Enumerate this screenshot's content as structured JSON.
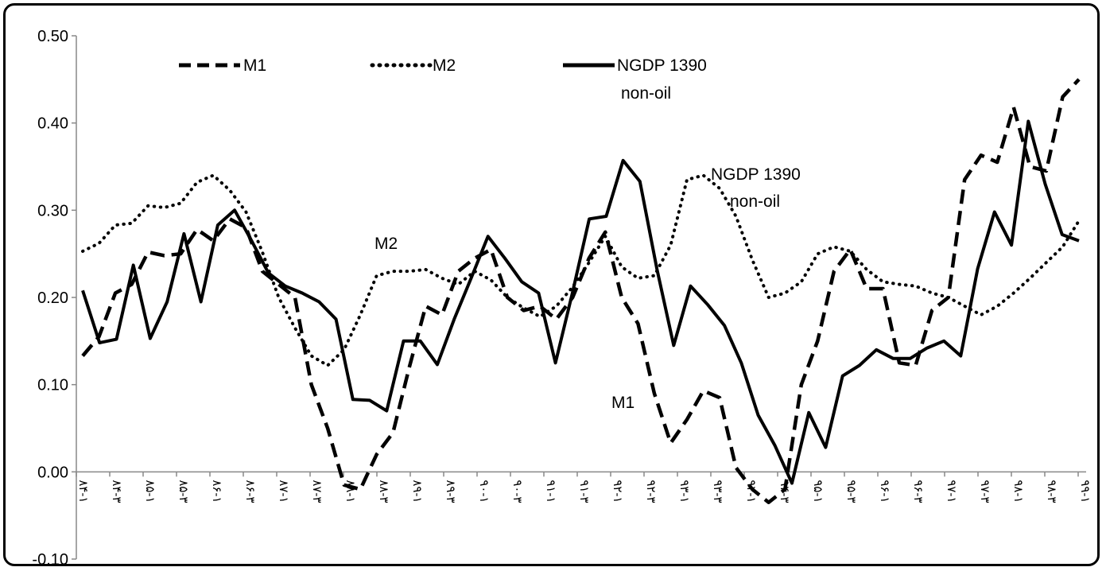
{
  "chart_data": {
    "type": "line",
    "title": "",
    "xlabel": "",
    "ylabel": "",
    "ylim": [
      -0.1,
      0.5
    ],
    "yticks": [
      "0.50",
      "0.40",
      "0.30",
      "0.20",
      "0.10",
      "0.00",
      "-0.10"
    ],
    "grid": false,
    "legend_position": "top",
    "x_tick_labels": [
      "۸۴-۱",
      "۸۴-۳",
      "۸۵-۱",
      "۸۵-۳",
      "۸۶-۱",
      "۸۶-۳",
      "۸۷-۱",
      "۸۷-۳",
      "۸۸-۱",
      "۸۸-۳",
      "۸۹-۱",
      "۸۹-۳",
      "۹۰-۱",
      "۹۰-۳",
      "۹۱-۱",
      "۹۱-۳",
      "۹۲-۱",
      "۹۲-۳",
      "۹۳-۱",
      "۹۳-۳",
      "۹۴-۱",
      "۹۴-۳",
      "۹۵-۱",
      "۹۵-۳",
      "۹۶-۱",
      "۹۶-۳",
      "۹۷-۱",
      "۹۷-۳",
      "۹۸-۱",
      "۹۸-۳",
      "۹۹-۱"
    ],
    "series": [
      {
        "name": "M1",
        "style": "dashed",
        "values": [
          0.133,
          0.155,
          0.205,
          0.215,
          0.252,
          0.248,
          0.25,
          0.278,
          0.265,
          0.29,
          0.28,
          0.23,
          0.215,
          0.2,
          0.1,
          0.05,
          -0.015,
          -0.02,
          0.02,
          0.045,
          0.12,
          0.19,
          0.18,
          0.23,
          0.245,
          0.255,
          0.2,
          0.185,
          0.19,
          0.175,
          0.2,
          0.245,
          0.275,
          0.2,
          0.17,
          0.09,
          0.033,
          0.06,
          0.093,
          0.085,
          0.005,
          -0.02,
          -0.035,
          -0.02,
          0.1,
          0.15,
          0.23,
          0.255,
          0.21,
          0.21,
          0.125,
          0.122,
          0.185,
          0.2,
          0.335,
          0.363,
          0.355,
          0.418,
          0.35,
          0.345,
          0.43,
          0.45
        ]
      },
      {
        "name": "M2",
        "style": "dotted",
        "values": [
          0.253,
          0.262,
          0.283,
          0.285,
          0.305,
          0.303,
          0.308,
          0.332,
          0.34,
          0.323,
          0.298,
          0.252,
          0.2,
          0.165,
          0.133,
          0.122,
          0.14,
          0.18,
          0.225,
          0.23,
          0.23,
          0.232,
          0.222,
          0.215,
          0.23,
          0.22,
          0.2,
          0.188,
          0.178,
          0.19,
          0.212,
          0.24,
          0.27,
          0.235,
          0.222,
          0.225,
          0.26,
          0.335,
          0.34,
          0.325,
          0.293,
          0.243,
          0.2,
          0.205,
          0.218,
          0.25,
          0.258,
          0.253,
          0.232,
          0.218,
          0.215,
          0.213,
          0.205,
          0.2,
          0.19,
          0.18,
          0.19,
          0.205,
          0.222,
          0.24,
          0.258,
          0.288
        ]
      },
      {
        "name": "NGDP 1390 non-oil",
        "style": "solid",
        "values": [
          0.208,
          0.148,
          0.152,
          0.237,
          0.153,
          0.195,
          0.273,
          0.195,
          0.283,
          0.3,
          0.265,
          0.228,
          0.213,
          0.205,
          0.195,
          0.175,
          0.083,
          0.082,
          0.07,
          0.15,
          0.15,
          0.123,
          0.175,
          0.222,
          0.27,
          0.245,
          0.218,
          0.205,
          0.125,
          0.205,
          0.29,
          0.293,
          0.357,
          0.333,
          0.233,
          0.145,
          0.213,
          0.192,
          0.168,
          0.125,
          0.065,
          0.03,
          -0.013,
          0.068,
          0.028,
          0.11,
          0.122,
          0.14,
          0.13,
          0.13,
          0.142,
          0.15,
          0.133,
          0.233,
          0.298,
          0.26,
          0.402,
          0.33,
          0.272,
          0.265
        ]
      }
    ],
    "legend": [
      {
        "label": "M1",
        "style": "dashed"
      },
      {
        "label": "M2",
        "style": "dotted"
      },
      {
        "label_line1": "NGDP 1390",
        "label_line2": "non-oil",
        "style": "solid"
      }
    ],
    "annotations": {
      "m2": "M2",
      "m1": "M1",
      "ngdp_line1": "NGDP 1390",
      "ngdp_line2": "non-oil"
    },
    "line_color": "#000000"
  }
}
